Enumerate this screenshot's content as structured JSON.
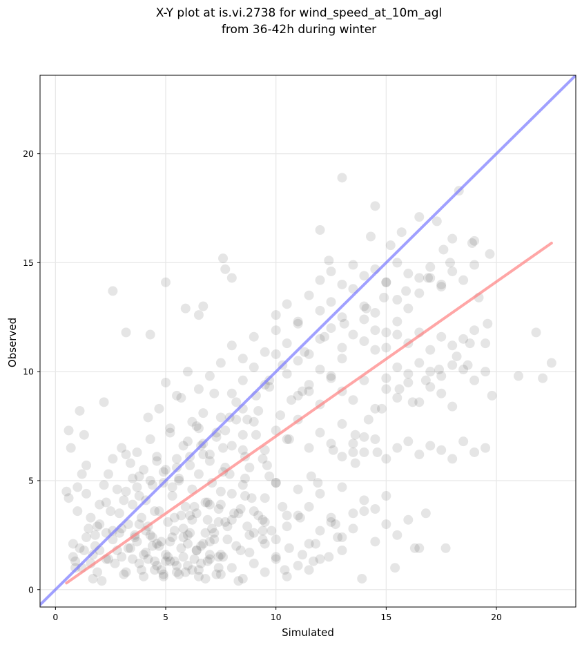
{
  "chart_data": {
    "type": "scatter",
    "title_line1": "X-Y plot at is.vi.2738 for wind_speed_at_10m_agl",
    "title_line2": "from 36-42h during winter",
    "xlabel": "Simulated",
    "ylabel": "Observed",
    "xlim": [
      -0.7,
      23.6
    ],
    "ylim": [
      -0.8,
      23.6
    ],
    "xticks": [
      0,
      5,
      10,
      15,
      20
    ],
    "yticks": [
      0,
      5,
      10,
      15,
      20
    ],
    "grid": true,
    "colors": {
      "points": "#000000",
      "identity_line": "#7777ff",
      "fit_line": "#ff7777"
    },
    "identity_line": {
      "x": [
        -0.7,
        23.6
      ],
      "y": [
        -0.7,
        23.6
      ]
    },
    "fit_line": {
      "x": [
        0.5,
        22.5
      ],
      "y": [
        0.3,
        15.9
      ]
    },
    "series": [
      {
        "x": [
          0.5,
          0.6,
          0.7,
          0.8,
          0.9,
          1.0,
          1.1,
          1.2,
          1.3,
          1.4,
          1.5,
          1.6,
          1.7,
          1.8,
          1.9,
          2.0,
          2.1,
          2.2,
          2.3,
          2.4,
          0.6,
          0.8,
          1.0,
          1.2,
          1.4,
          1.6,
          1.8,
          2.0,
          2.2,
          2.4,
          2.6,
          2.8,
          3.0,
          1.1,
          1.4,
          1.7,
          2.0,
          2.3,
          2.6,
          2.9,
          3.2,
          3.5,
          3.8,
          2.6,
          2.8,
          3.0,
          3.2,
          3.4,
          3.6,
          3.8,
          4.0,
          4.2,
          4.4,
          4.6,
          4.8,
          5.0,
          5.2,
          5.4,
          5.6,
          5.8,
          6.0,
          6.2,
          6.4,
          6.6,
          6.8,
          7.0,
          7.2,
          7.4,
          2.7,
          2.9,
          3.1,
          3.3,
          3.5,
          3.7,
          3.9,
          4.1,
          4.3,
          4.5,
          4.7,
          4.9,
          5.1,
          5.3,
          5.5,
          5.7,
          5.9,
          6.1,
          6.3,
          6.5,
          6.7,
          6.9,
          7.1,
          7.3,
          7.5,
          3.0,
          3.3,
          3.6,
          3.9,
          4.2,
          4.5,
          4.8,
          5.1,
          5.4,
          5.7,
          6.0,
          6.3,
          6.6,
          6.9,
          7.2,
          7.5,
          7.8,
          8.1,
          8.4,
          8.7,
          3.2,
          3.5,
          3.8,
          4.1,
          4.4,
          4.7,
          5.0,
          5.3,
          5.6,
          5.9,
          6.2,
          6.5,
          6.8,
          7.1,
          7.4,
          7.7,
          8.0,
          8.3,
          8.6,
          8.9,
          9.2,
          3.4,
          3.7,
          4.0,
          4.3,
          4.6,
          4.9,
          5.2,
          5.5,
          5.8,
          6.1,
          6.4,
          6.7,
          7.0,
          7.3,
          7.6,
          7.9,
          8.2,
          8.5,
          8.8,
          9.1,
          9.4,
          9.7,
          10.0,
          4.5,
          5.0,
          5.5,
          6.0,
          6.5,
          7.0,
          7.5,
          8.0,
          8.5,
          9.0,
          9.5,
          10.0,
          10.5,
          11.0,
          11.5,
          12.0,
          4.2,
          4.7,
          5.2,
          5.7,
          6.2,
          6.7,
          7.2,
          7.7,
          8.2,
          8.7,
          9.2,
          9.7,
          10.2,
          10.7,
          11.2,
          5.0,
          5.5,
          6.0,
          6.5,
          7.0,
          7.5,
          8.0,
          8.5,
          9.0,
          9.5,
          10.0,
          10.5,
          11.0,
          11.5,
          12.0,
          12.5,
          13.0,
          6.0,
          6.5,
          7.0,
          7.5,
          8.0,
          8.5,
          9.0,
          9.5,
          10.0,
          10.5,
          11.0,
          11.5,
          12.0,
          12.5,
          13.0,
          13.5,
          14.0,
          7.0,
          7.5,
          8.0,
          8.5,
          9.0,
          9.5,
          10.0,
          10.5,
          11.0,
          11.5,
          12.0,
          12.5,
          13.0,
          13.5,
          14.0,
          14.5,
          15.0,
          8.0,
          8.5,
          9.0,
          9.5,
          10.0,
          10.5,
          11.0,
          11.5,
          12.0,
          12.5,
          13.0,
          13.5,
          14.0,
          14.5,
          15.0,
          15.5,
          9.0,
          9.5,
          10.0,
          10.5,
          11.0,
          11.5,
          12.0,
          12.5,
          13.0,
          13.5,
          14.0,
          14.5,
          15.0,
          15.5,
          16.0,
          16.5,
          10.0,
          10.5,
          11.0,
          11.5,
          12.0,
          12.5,
          13.0,
          13.5,
          14.0,
          14.5,
          15.0,
          15.5,
          16.0,
          16.5,
          17.0,
          17.5,
          11.0,
          11.5,
          12.0,
          12.5,
          13.0,
          13.5,
          14.0,
          14.5,
          15.0,
          15.5,
          16.0,
          16.5,
          17.0,
          17.5,
          18.0,
          12.0,
          12.5,
          13.0,
          13.5,
          14.0,
          14.5,
          15.0,
          15.5,
          16.0,
          16.5,
          17.0,
          17.5,
          18.0,
          18.5,
          19.0,
          13.0,
          13.5,
          14.0,
          14.5,
          15.0,
          15.5,
          16.0,
          16.5,
          17.0,
          17.5,
          18.0,
          18.5,
          19.0,
          19.5,
          14.0,
          14.5,
          15.0,
          15.5,
          16.0,
          16.5,
          17.0,
          17.5,
          18.0,
          18.5,
          19.0,
          19.5,
          15.0,
          15.5,
          16.0,
          16.5,
          17.0,
          17.5,
          18.0,
          18.5,
          19.0,
          19.5,
          2.6,
          3.2,
          4.3,
          5.0,
          5.9,
          6.5,
          6.7,
          7.6,
          7.7,
          8.0,
          12.0,
          12.4,
          13.0,
          14.3,
          14.5,
          15.2,
          15.7,
          16.5,
          17.3,
          17.6,
          18.0,
          18.3,
          19.0,
          19.7,
          19.8,
          21.0,
          21.8,
          22.1,
          22.5,
          18.7,
          19.2,
          19.6,
          2.3,
          4.1,
          4.9,
          6.2,
          7.4,
          8.3,
          9.5,
          10.4,
          11.7,
          12.8,
          13.9,
          15.4,
          16.3,
          16.8,
          17.7,
          5.3,
          6.1,
          6.9,
          7.7,
          8.6,
          9.4,
          10.3,
          11.1,
          11.9,
          12.7,
          4.6,
          5.6,
          6.6,
          7.6,
          8.6,
          9.6,
          10.6,
          11.6,
          12.6,
          13.6,
          14.6,
          3.8,
          4.4,
          5.4,
          5.8,
          6.4,
          6.8,
          7.4,
          7.8,
          8.4,
          8.8,
          9.4,
          9.8,
          4.0,
          4.6,
          5.2,
          5.8,
          6.4,
          7.0,
          7.6,
          8.2,
          8.8,
          9.4,
          10.0,
          10.6,
          11.2,
          11.8,
          12.4,
          13.0,
          0.9,
          1.3,
          1.9,
          2.5,
          3.1,
          3.7,
          4.3,
          4.9,
          5.5,
          6.1,
          6.7,
          7.3,
          7.9,
          8.5,
          9.1,
          9.7,
          10.3,
          11.3,
          12.2,
          13.1,
          14.1,
          14.9,
          15.9,
          16.9,
          17.9,
          18.9,
          13.6,
          14.2,
          14.8,
          15.6,
          16.2,
          16.8,
          17.4,
          18.2,
          18.8
        ],
        "y": [
          4.5,
          7.3,
          6.5,
          1.5,
          1.0,
          4.7,
          8.2,
          5.3,
          7.1,
          5.7,
          2.8,
          1.2,
          0.5,
          2.0,
          0.8,
          1.8,
          0.4,
          8.6,
          2.6,
          1.4,
          4.2,
          2.1,
          3.6,
          1.0,
          4.4,
          3.3,
          2.5,
          3.9,
          4.8,
          5.3,
          6.0,
          4.6,
          6.5,
          1.9,
          2.4,
          1.6,
          3.0,
          4.0,
          2.7,
          3.5,
          6.2,
          5.1,
          4.3,
          2.3,
          1.8,
          1.5,
          0.8,
          1.9,
          2.5,
          1.2,
          0.6,
          1.4,
          2.0,
          1.1,
          0.9,
          1.6,
          2.2,
          1.3,
          0.7,
          1.5,
          2.1,
          0.9,
          1.8,
          1.2,
          0.5,
          1.6,
          2.3,
          1.0,
          1.2,
          2.6,
          0.7,
          1.9,
          1.4,
          2.2,
          0.9,
          1.7,
          2.5,
          1.3,
          2.0,
          0.6,
          1.5,
          2.4,
          1.1,
          1.9,
          0.8,
          2.6,
          1.4,
          0.9,
          2.1,
          1.3,
          2.8,
          0.7,
          1.6,
          2.8,
          3.0,
          2.4,
          3.3,
          2.9,
          3.6,
          2.2,
          3.1,
          2.7,
          3.4,
          2.5,
          3.8,
          2.0,
          3.2,
          2.6,
          3.9,
          2.3,
          3.5,
          1.8,
          2.9,
          4.5,
          3.9,
          5.2,
          4.1,
          4.8,
          3.6,
          5.5,
          4.3,
          5.0,
          3.8,
          4.6,
          5.3,
          4.0,
          4.9,
          3.7,
          5.6,
          4.4,
          3.5,
          5.1,
          4.2,
          3.4,
          5.8,
          6.3,
          5.5,
          6.9,
          6.1,
          5.4,
          7.2,
          6.0,
          6.6,
          5.7,
          7.5,
          6.2,
          5.9,
          7.0,
          6.5,
          5.3,
          7.8,
          6.4,
          5.6,
          7.1,
          6.0,
          5.2,
          4.9,
          0.9,
          1.3,
          0.8,
          1.1,
          0.6,
          1.4,
          0.7,
          1.0,
          0.5,
          1.2,
          0.8,
          1.5,
          0.6,
          1.1,
          0.9,
          1.4,
          7.9,
          8.3,
          7.4,
          8.8,
          7.7,
          8.1,
          9.0,
          7.3,
          8.6,
          7.8,
          8.2,
          9.3,
          8.0,
          8.7,
          9.1,
          9.5,
          8.9,
          10.0,
          9.2,
          9.8,
          10.4,
          9.0,
          9.6,
          10.2,
          9.4,
          10.8,
          9.9,
          10.5,
          9.1,
          10.1,
          9.7,
          10.6,
          6.8,
          7.4,
          6.2,
          7.9,
          6.6,
          7.1,
          7.7,
          6.4,
          7.3,
          6.9,
          7.8,
          6.5,
          7.2,
          6.7,
          7.6,
          6.3,
          7.0,
          3.9,
          4.5,
          3.2,
          4.8,
          3.6,
          4.2,
          4.9,
          3.4,
          4.6,
          3.8,
          4.4,
          3.1,
          4.7,
          3.5,
          4.1,
          3.7,
          4.3,
          11.2,
          10.6,
          11.6,
          10.9,
          11.9,
          11.3,
          12.2,
          10.8,
          11.5,
          12.0,
          11.1,
          11.7,
          12.4,
          11.0,
          11.8,
          12.3,
          2.6,
          3.1,
          2.3,
          2.9,
          3.4,
          2.1,
          2.7,
          3.3,
          2.4,
          2.8,
          3.6,
          2.2,
          3.0,
          2.5,
          3.2,
          1.9,
          12.6,
          13.1,
          12.3,
          13.5,
          12.8,
          13.2,
          12.5,
          13.8,
          13.0,
          12.7,
          14.1,
          13.3,
          12.9,
          13.6,
          14.3,
          13.9,
          8.9,
          9.4,
          8.5,
          9.8,
          9.1,
          8.7,
          9.6,
          8.3,
          9.2,
          8.8,
          9.5,
          8.6,
          9.3,
          9.0,
          8.4,
          14.2,
          14.6,
          14.0,
          14.9,
          14.4,
          14.7,
          14.1,
          15.0,
          14.5,
          14.3,
          14.8,
          14.0,
          14.6,
          14.2,
          14.9,
          6.1,
          6.7,
          6.3,
          6.9,
          6.0,
          6.5,
          6.8,
          6.2,
          6.6,
          6.4,
          6.0,
          6.8,
          6.3,
          6.5,
          11.4,
          11.9,
          11.1,
          11.7,
          11.3,
          11.8,
          11.0,
          11.6,
          11.2,
          11.5,
          11.9,
          11.3,
          9.7,
          10.2,
          9.9,
          10.4,
          10.0,
          9.8,
          10.3,
          10.1,
          9.6,
          10.0,
          13.7,
          11.8,
          11.7,
          14.1,
          12.9,
          12.6,
          13.0,
          15.2,
          14.7,
          14.3,
          16.5,
          15.1,
          18.9,
          16.2,
          17.6,
          15.8,
          16.4,
          17.1,
          16.9,
          15.6,
          16.1,
          18.3,
          16.0,
          15.4,
          8.9,
          9.8,
          11.8,
          9.7,
          10.4,
          10.3,
          13.4,
          12.2,
          1.4,
          2.7,
          0.7,
          3.2,
          1.5,
          0.4,
          2.1,
          0.9,
          1.3,
          2.4,
          0.5,
          1.0,
          1.9,
          3.5,
          1.9,
          4.7,
          3.4,
          4.0,
          3.1,
          4.3,
          2.7,
          3.8,
          3.3,
          4.9,
          3.0,
          5.9,
          5.1,
          6.6,
          5.4,
          6.1,
          5.7,
          6.9,
          5.2,
          6.4,
          5.8,
          6.3,
          3.0,
          2.4,
          3.3,
          2.8,
          3.5,
          2.6,
          3.1,
          2.9,
          3.7,
          2.5,
          3.2,
          2.7,
          1.6,
          2.1,
          1.3,
          2.4,
          1.8,
          2.2,
          1.5,
          2.0,
          1.7,
          2.3,
          1.4,
          1.9,
          1.6,
          2.1,
          1.5,
          1.8,
          1.3,
          1.8,
          2.9,
          3.6,
          4.1,
          4.7,
          5.0,
          4.9,
          5.6,
          6.1,
          6.7,
          7.2,
          7.9,
          8.3,
          8.9,
          9.6,
          10.3,
          10.9,
          11.6,
          12.2,
          12.9,
          13.4,
          13.7,
          14.3,
          15.0,
          15.9,
          7.1,
          7.8,
          8.3,
          9.2,
          8.6,
          9.6,
          10.1,
          10.7,
          11.3
        ]
      }
    ]
  }
}
